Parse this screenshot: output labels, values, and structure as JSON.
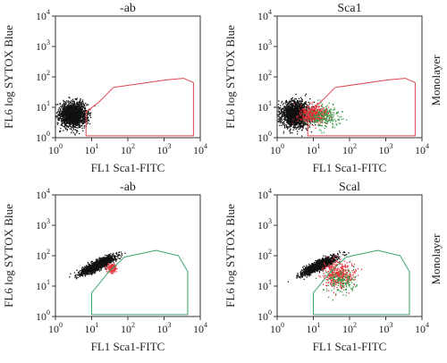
{
  "chart_data": [
    {
      "type": "scatter",
      "title": "-ab",
      "xlabel": "FL1 Sca1-FITC",
      "ylabel": "FL6 log SYTOX Blue",
      "x_scale": "log",
      "y_scale": "log",
      "xlim": [
        1,
        10000
      ],
      "ylim": [
        1,
        10000
      ],
      "x_tick_labels": [
        "10^0",
        "10^1",
        "10^2",
        "10^3",
        "10^4"
      ],
      "y_tick_labels": [
        "10^0",
        "10^1",
        "10^2",
        "10^3",
        "10^4"
      ],
      "gate_color": "#e0454d",
      "gate": [
        [
          7,
          1.15
        ],
        [
          7,
          7
        ],
        [
          16,
          15
        ],
        [
          40,
          45
        ],
        [
          1200,
          80
        ],
        [
          3500,
          90
        ],
        [
          6500,
          65
        ],
        [
          6500,
          1.15
        ]
      ],
      "series": [
        {
          "color": "#111111",
          "center": [
            3,
            6
          ],
          "spread": [
            2.2,
            2.3
          ],
          "n": 1800
        }
      ]
    },
    {
      "type": "scatter",
      "title": "Sca1",
      "xlabel": "FL1 Sca1-FITC",
      "ylabel": "FL6 log SYTOX Blue",
      "x_scale": "log",
      "y_scale": "log",
      "xlim": [
        1,
        10000
      ],
      "ylim": [
        1,
        10000
      ],
      "x_tick_labels": [
        "10^0",
        "10^1",
        "10^2",
        "10^3",
        "10^4"
      ],
      "y_tick_labels": [
        "10^0",
        "10^1",
        "10^2",
        "10^3",
        "10^4"
      ],
      "row_label": "Monolayer",
      "gate_color": "#e0454d",
      "gate": [
        [
          7,
          1.15
        ],
        [
          7,
          7
        ],
        [
          16,
          15
        ],
        [
          40,
          45
        ],
        [
          1200,
          80
        ],
        [
          3500,
          90
        ],
        [
          6500,
          65
        ],
        [
          6500,
          1.15
        ]
      ],
      "series": [
        {
          "color": "#111111",
          "center": [
            3.2,
            6
          ],
          "spread": [
            2.4,
            2.4
          ],
          "n": 1800
        },
        {
          "color": "#e8323a",
          "center": [
            10,
            6
          ],
          "spread": [
            2.3,
            1.8
          ],
          "n": 500
        },
        {
          "color": "#3a9a4a",
          "center": [
            20,
            5
          ],
          "spread": [
            2.6,
            2.1
          ],
          "n": 220
        }
      ]
    },
    {
      "type": "scatter",
      "title": "-ab",
      "xlabel": "FL1 Sca1-FITC",
      "ylabel": "FL6 log SYTOX Blue",
      "x_scale": "log",
      "y_scale": "log",
      "xlim": [
        1,
        10000
      ],
      "ylim": [
        1,
        10000
      ],
      "x_tick_labels": [
        "10^0",
        "10^1",
        "10^2",
        "10^3",
        "10^4"
      ],
      "y_tick_labels": [
        "10^0",
        "10^1",
        "10^2",
        "10^3",
        "10^4"
      ],
      "gate_color": "#3aa56a",
      "gate": [
        [
          10,
          1.15
        ],
        [
          10,
          6
        ],
        [
          30,
          30
        ],
        [
          80,
          90
        ],
        [
          600,
          150
        ],
        [
          2500,
          100
        ],
        [
          4500,
          30
        ],
        [
          4500,
          1.15
        ]
      ],
      "series": [
        {
          "color": "#111111",
          "center": [
            14,
            50
          ],
          "spread": [
            2.6,
            2.0
          ],
          "n": 1900,
          "diagonal": true
        },
        {
          "color": "#e8323a",
          "center": [
            35,
            40
          ],
          "spread": [
            1.4,
            1.4
          ],
          "n": 120
        }
      ]
    },
    {
      "type": "scatter",
      "title": "Scal",
      "xlabel": "FL1 Sca1-FITC",
      "ylabel": "FL6 log SYTOX Blue",
      "x_scale": "log",
      "y_scale": "log",
      "xlim": [
        1,
        10000
      ],
      "ylim": [
        1,
        10000
      ],
      "x_tick_labels": [
        "10^0",
        "10^1",
        "10^2",
        "10^3",
        "10^4"
      ],
      "y_tick_labels": [
        "10^0",
        "10^1",
        "10^2",
        "10^3",
        "10^4"
      ],
      "row_label": "Monolayer",
      "gate_color": "#3aa56a",
      "gate": [
        [
          10,
          1.15
        ],
        [
          10,
          6
        ],
        [
          30,
          30
        ],
        [
          80,
          90
        ],
        [
          600,
          150
        ],
        [
          2500,
          100
        ],
        [
          4500,
          30
        ],
        [
          4500,
          1.15
        ]
      ],
      "series": [
        {
          "color": "#111111",
          "center": [
            14,
            50
          ],
          "spread": [
            2.6,
            2.0
          ],
          "n": 1700,
          "diagonal": true
        },
        {
          "color": "#e8323a",
          "center": [
            45,
            25
          ],
          "spread": [
            2.4,
            2.4
          ],
          "n": 420
        },
        {
          "color": "#3a9a4a",
          "center": [
            60,
            15
          ],
          "spread": [
            2.8,
            2.5
          ],
          "n": 160
        }
      ]
    }
  ]
}
